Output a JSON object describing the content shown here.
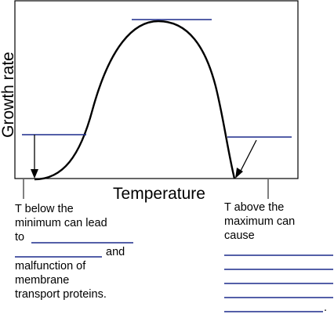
{
  "diagram": {
    "y_axis_label": "Growth rate",
    "x_axis_label": "Temperature",
    "left_text": {
      "line1": "T below the",
      "line2": "minimum can lead",
      "line3": "to",
      "line4": "and",
      "line5": "malfunction of",
      "line6": "membrane",
      "line7": "transport proteins."
    },
    "right_text": {
      "line1": "T above the",
      "line2": "maximum can",
      "line3": "cause",
      "final_period": "."
    }
  },
  "colors": {
    "answer_lines": "#1c2a8c",
    "curve": "#000000"
  }
}
